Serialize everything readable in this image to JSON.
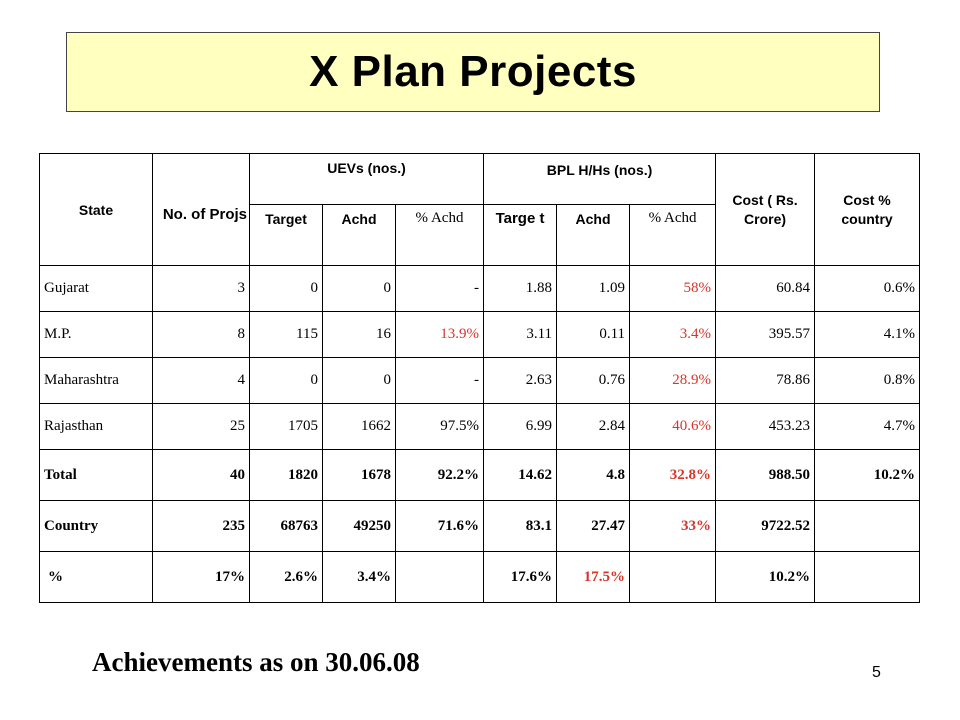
{
  "title": "X Plan Projects",
  "header": {
    "state": "State",
    "projs": "No. of Projs",
    "uevs_group": "UEVs (nos.)",
    "bpl_group": "BPL H/Hs (nos.)",
    "cost": "Cost ( Rs. Crore)",
    "cost_pct": "Cost % country",
    "target": "Target",
    "achd": "Achd",
    "pct_achd": "% Achd",
    "bpl_target": "Targe t",
    "bpl_achd": "Achd",
    "bpl_pct_achd": "% Achd"
  },
  "rows": [
    {
      "state": "Gujarat",
      "projs": "3",
      "uev_target": "0",
      "uev_achd": "0",
      "uev_pct": "-",
      "bpl_target": "1.88",
      "bpl_achd": "1.09",
      "bpl_pct": "58%",
      "cost": "60.84",
      "cost_pct": "0.6%"
    },
    {
      "state": "M.P.",
      "projs": "8",
      "uev_target": "115",
      "uev_achd": "16",
      "uev_pct": "13.9%",
      "bpl_target": "3.11",
      "bpl_achd": "0.11",
      "bpl_pct": "3.4%",
      "cost": "395.57",
      "cost_pct": "4.1%"
    },
    {
      "state": "Maharashtra",
      "projs": "4",
      "uev_target": "0",
      "uev_achd": "0",
      "uev_pct": "-",
      "bpl_target": "2.63",
      "bpl_achd": "0.76",
      "bpl_pct": "28.9%",
      "cost": "78.86",
      "cost_pct": "0.8%"
    },
    {
      "state": "Rajasthan",
      "projs": "25",
      "uev_target": "1705",
      "uev_achd": "1662",
      "uev_pct": "97.5%",
      "bpl_target": "6.99",
      "bpl_achd": "2.84",
      "bpl_pct": "40.6%",
      "cost": "453.23",
      "cost_pct": "4.7%"
    },
    {
      "state": "Total",
      "projs": "40",
      "uev_target": "1820",
      "uev_achd": "1678",
      "uev_pct": "92.2%",
      "bpl_target": "14.62",
      "bpl_achd": "4.8",
      "bpl_pct": "32.8%",
      "cost": "988.50",
      "cost_pct": "10.2%"
    },
    {
      "state": "Country",
      "projs": "235",
      "uev_target": "68763",
      "uev_achd": "49250",
      "uev_pct": "71.6%",
      "bpl_target": "83.1",
      "bpl_achd": "27.47",
      "bpl_pct": "33%",
      "cost": "9722.52",
      "cost_pct": ""
    },
    {
      "state": "%",
      "projs": "17%",
      "uev_target": "2.6%",
      "uev_achd": "3.4%",
      "uev_pct": "",
      "bpl_target": "17.6%",
      "bpl_achd": "17.5%",
      "bpl_pct": "",
      "cost": "10.2%",
      "cost_pct": ""
    }
  ],
  "footer": "Achievements as on 30.06.08",
  "page_number": "5",
  "colors": {
    "title_bg": "#ffffc0",
    "highlight": "#d8352a"
  }
}
